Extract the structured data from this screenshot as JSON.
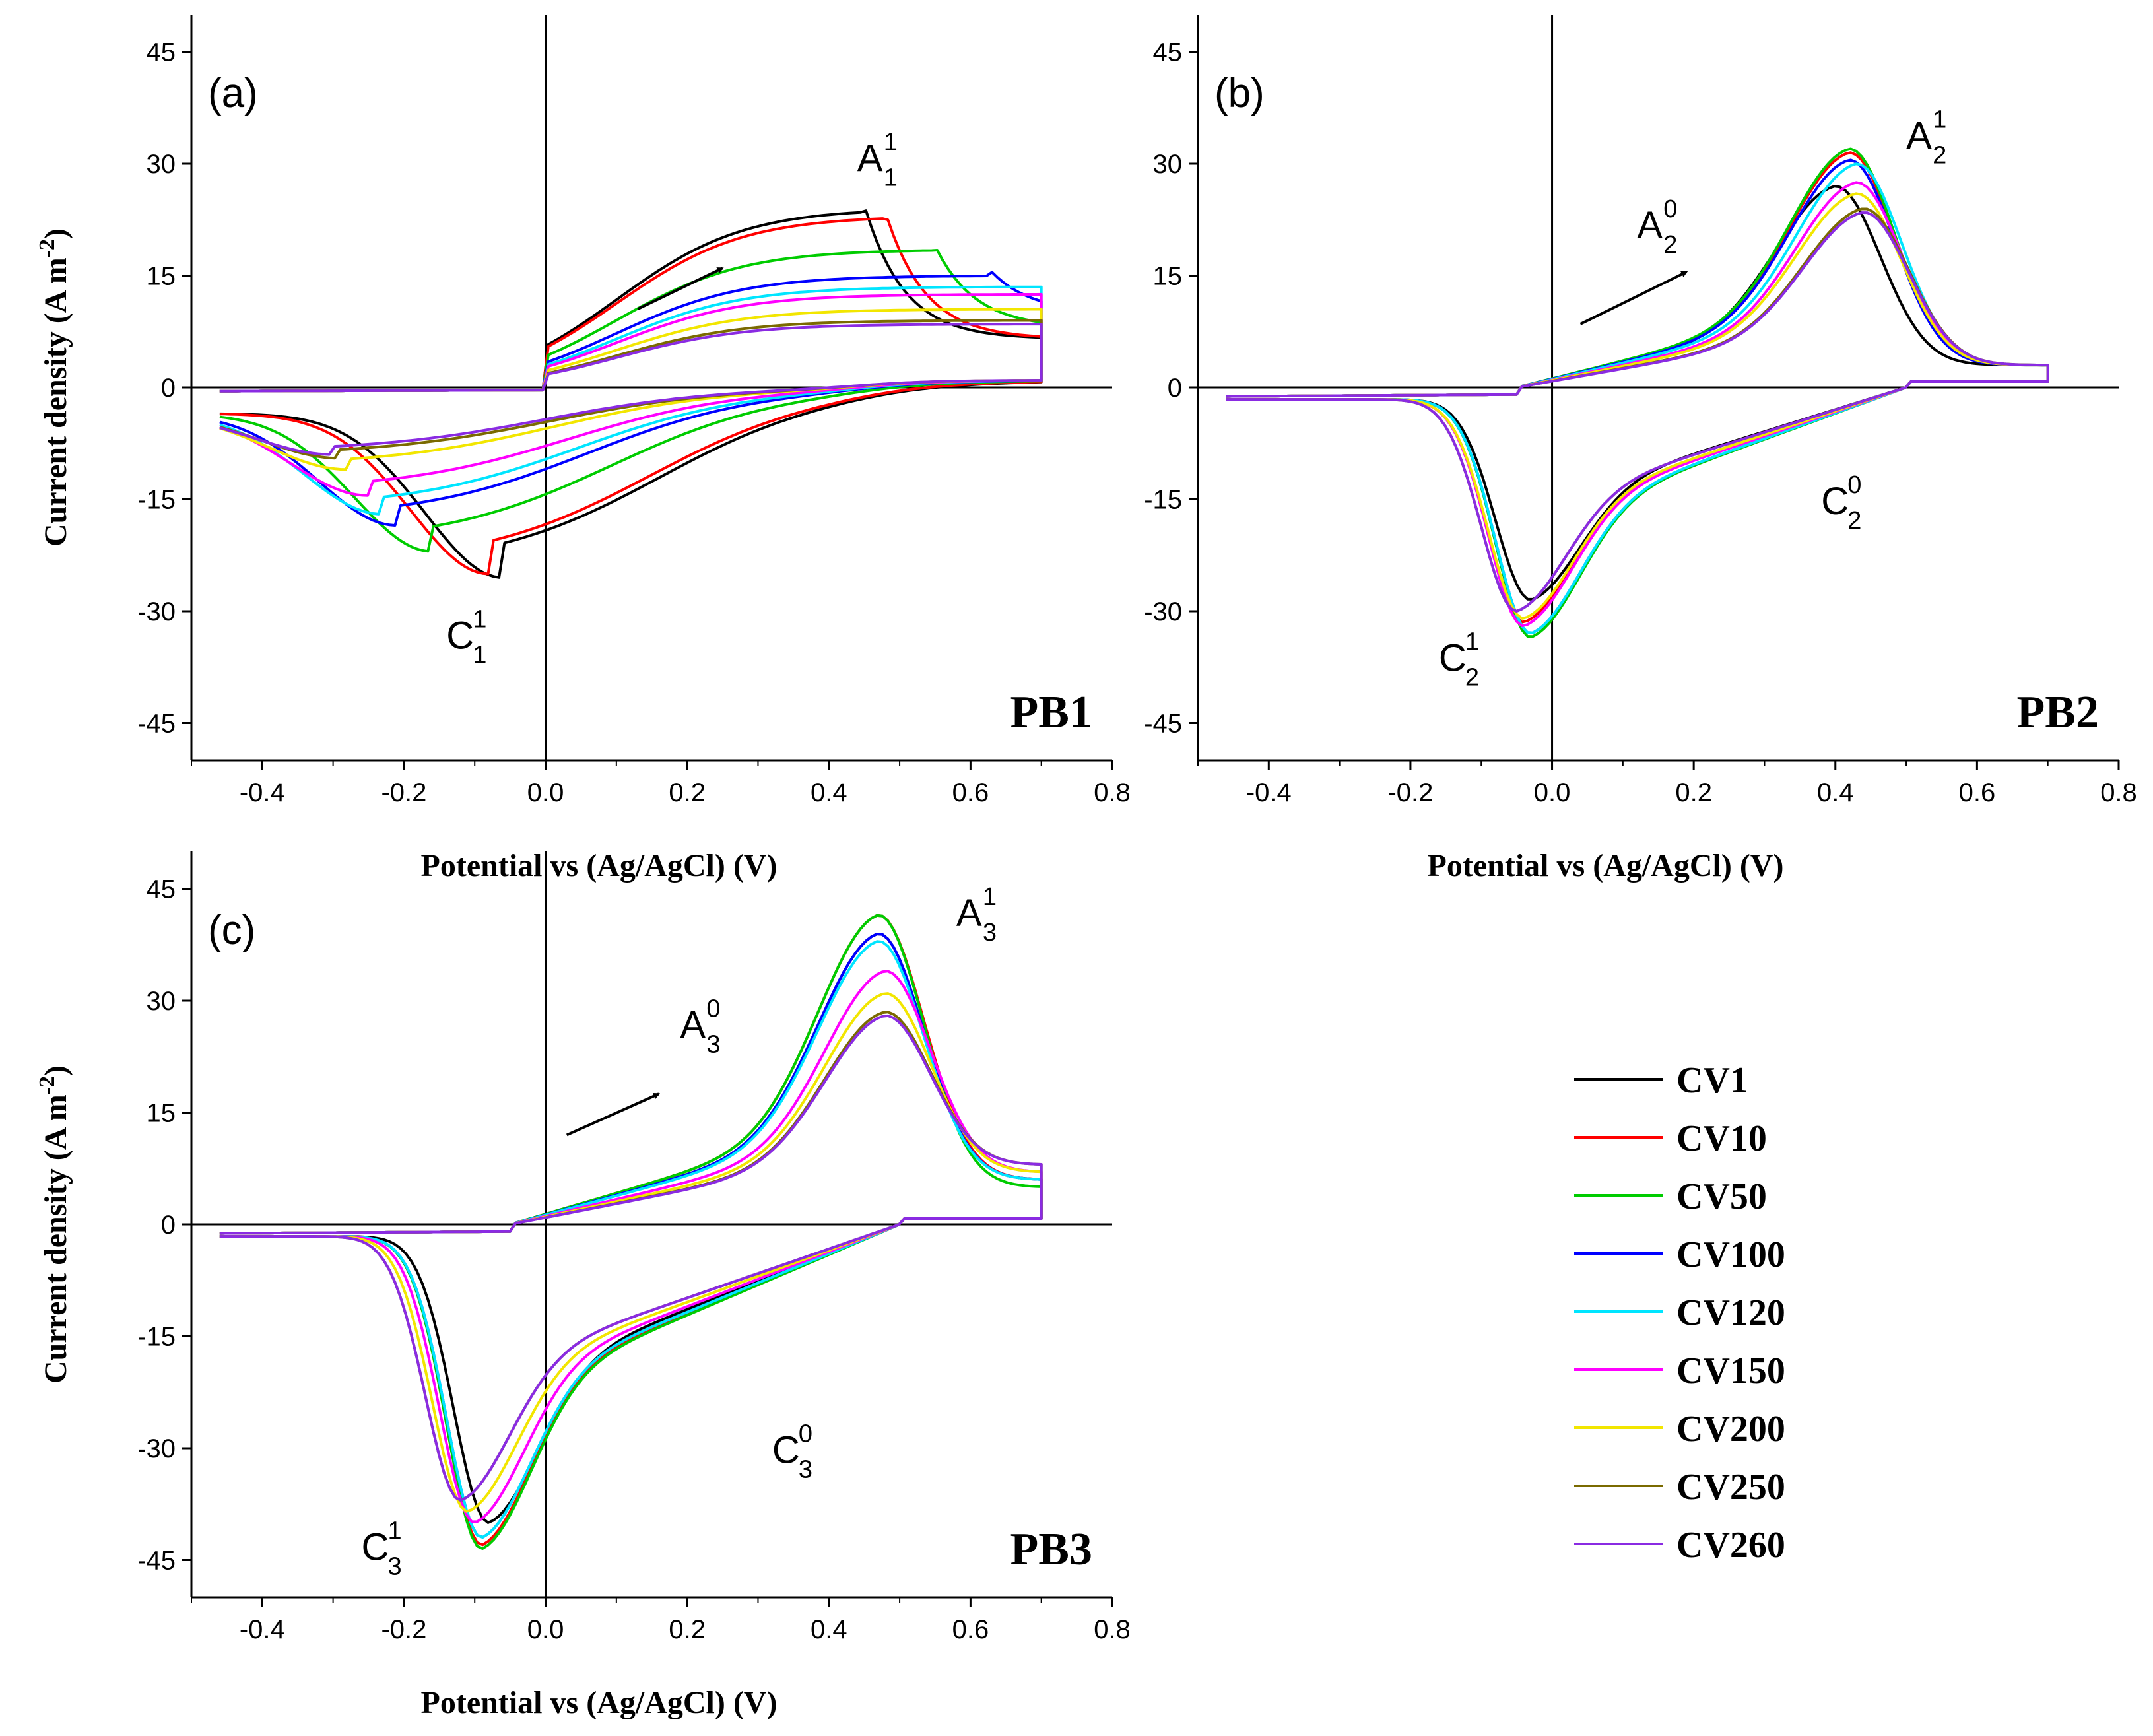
{
  "chart_data": {
    "type": "line",
    "x_label": "Potential vs (Ag/AgCl) (V)",
    "y_label": "Current density (A m",
    "y_label_sup": "-2",
    "y_label_close": ")",
    "xlim": [
      -0.5,
      0.8
    ],
    "ylim": [
      -50,
      50
    ],
    "x_ticks": [
      -0.4,
      -0.2,
      0.0,
      0.2,
      0.4,
      0.6,
      0.8
    ],
    "x_tick_labels": [
      "-0.4",
      "-0.2",
      "0.0",
      "0.2",
      "0.4",
      "0.6",
      "0.8"
    ],
    "y_ticks": [
      -45,
      -30,
      -15,
      0,
      15,
      30,
      45
    ],
    "y_tick_labels": [
      "-45",
      "-30",
      "-15",
      "0",
      "15",
      "30",
      "45"
    ],
    "legend": {
      "placement": "right-bottom",
      "entries": [
        {
          "name": "CV1",
          "color": "#000000"
        },
        {
          "name": "CV10",
          "color": "#ff0000"
        },
        {
          "name": "CV50",
          "color": "#00cc00"
        },
        {
          "name": "CV100",
          "color": "#0000ff"
        },
        {
          "name": "CV120",
          "color": "#00e5ff"
        },
        {
          "name": "CV150",
          "color": "#ff00ff"
        },
        {
          "name": "CV200",
          "color": "#f2e600"
        },
        {
          "name": "CV250",
          "color": "#7a6a00"
        },
        {
          "name": "CV260",
          "color": "#8a2be2"
        }
      ]
    },
    "panels": [
      {
        "id": "a",
        "letter": "(a)",
        "name": "PB1",
        "arrow": {
          "from": [
            0.13,
            10.5
          ],
          "to": [
            0.25,
            16.0
          ]
        },
        "peaks": [
          {
            "main": "A",
            "sub": "1",
            "sup": "1",
            "x": 0.44,
            "y": 29
          },
          {
            "main": "C",
            "sub": "1",
            "sup": "1",
            "x": -0.14,
            "y": -35
          }
        ],
        "series": [
          {
            "name": "CV1",
            "ox_pk": [
              0.45,
              24.5
            ],
            "red_pk": [
              -0.06,
              -25.5
            ],
            "end": 6.5
          },
          {
            "name": "CV10",
            "ox_pk": [
              0.48,
              23.5
            ],
            "red_pk": [
              -0.08,
              -25.0
            ],
            "end": 6.5
          },
          {
            "name": "CV50",
            "ox_pk": [
              0.55,
              19.0
            ],
            "red_pk": [
              -0.16,
              -22.0
            ],
            "end": 8.0
          },
          {
            "name": "CV100",
            "ox_pk": [
              0.63,
              15.5
            ],
            "red_pk": [
              -0.21,
              -18.5
            ],
            "end": 10.0
          },
          {
            "name": "CV120",
            "ox_pk": [
              0.7,
              14.0
            ],
            "red_pk": [
              -0.23,
              -17.0
            ],
            "end": 12.0
          },
          {
            "name": "CV150",
            "ox_pk": [
              0.7,
              13.0
            ],
            "red_pk": [
              -0.25,
              -14.5
            ],
            "end": 13.0
          },
          {
            "name": "CV200",
            "ox_pk": [
              0.7,
              11.0
            ],
            "red_pk": [
              -0.28,
              -11.0
            ],
            "end": 11.0
          },
          {
            "name": "CV250",
            "ox_pk": [
              0.7,
              9.5
            ],
            "red_pk": [
              -0.29,
              -9.5
            ],
            "end": 9.5
          },
          {
            "name": "CV260",
            "ox_pk": [
              0.7,
              9.0
            ],
            "red_pk": [
              -0.3,
              -9.0
            ],
            "end": 9.0
          }
        ]
      },
      {
        "id": "b",
        "letter": "(b)",
        "name": "PB2",
        "arrow": {
          "from": [
            0.04,
            8.5
          ],
          "to": [
            0.19,
            15.5
          ]
        },
        "peaks": [
          {
            "main": "A",
            "sub": "2",
            "sup": "0",
            "x": 0.12,
            "y": 20
          },
          {
            "main": "A",
            "sub": "2",
            "sup": "1",
            "x": 0.5,
            "y": 32
          },
          {
            "main": "C",
            "sub": "2",
            "sup": "0",
            "x": 0.38,
            "y": -17
          },
          {
            "main": "C",
            "sub": "2",
            "sup": "1",
            "x": -0.16,
            "y": -38
          }
        ],
        "series": [
          {
            "name": "CV1",
            "ox_pk": [
              0.4,
              27.0
            ],
            "red_pk": [
              -0.03,
              -28.5
            ],
            "end": 3.0
          },
          {
            "name": "CV10",
            "ox_pk": [
              0.42,
              31.5
            ],
            "red_pk": [
              -0.04,
              -31.5
            ],
            "end": 3.0
          },
          {
            "name": "CV50",
            "ox_pk": [
              0.42,
              32.0
            ],
            "red_pk": [
              -0.03,
              -33.5
            ],
            "end": 3.0
          },
          {
            "name": "CV100",
            "ox_pk": [
              0.42,
              30.5
            ],
            "red_pk": [
              -0.03,
              -33.0
            ],
            "end": 3.0
          },
          {
            "name": "CV120",
            "ox_pk": [
              0.43,
              30.0
            ],
            "red_pk": [
              -0.03,
              -33.0
            ],
            "end": 3.0
          },
          {
            "name": "CV150",
            "ox_pk": [
              0.43,
              27.5
            ],
            "red_pk": [
              -0.04,
              -32.0
            ],
            "end": 3.0
          },
          {
            "name": "CV200",
            "ox_pk": [
              0.43,
              26.0
            ],
            "red_pk": [
              -0.04,
              -31.0
            ],
            "end": 3.0
          },
          {
            "name": "CV250",
            "ox_pk": [
              0.44,
              24.0
            ],
            "red_pk": [
              -0.05,
              -30.0
            ],
            "end": 3.0
          },
          {
            "name": "CV260",
            "ox_pk": [
              0.44,
              23.5
            ],
            "red_pk": [
              -0.05,
              -30.0
            ],
            "end": 3.0
          }
        ]
      },
      {
        "id": "c",
        "letter": "(c)",
        "name": "PB3",
        "arrow": {
          "from": [
            0.03,
            12.0
          ],
          "to": [
            0.16,
            17.5
          ]
        },
        "peaks": [
          {
            "main": "A",
            "sub": "3",
            "sup": "0",
            "x": 0.19,
            "y": 25
          },
          {
            "main": "A",
            "sub": "3",
            "sup": "1",
            "x": 0.58,
            "y": 40
          },
          {
            "main": "C",
            "sub": "3",
            "sup": "0",
            "x": 0.32,
            "y": -32
          },
          {
            "main": "C",
            "sub": "3",
            "sup": "1",
            "x": -0.26,
            "y": -45
          }
        ],
        "series": [
          {
            "name": "CV1",
            "ox_pk": [
              0.47,
              39.0
            ],
            "red_pk": [
              -0.08,
              -40.0
            ],
            "end": 6.0
          },
          {
            "name": "CV10",
            "ox_pk": [
              0.47,
              41.5
            ],
            "red_pk": [
              -0.09,
              -43.0
            ],
            "end": 6.0
          },
          {
            "name": "CV50",
            "ox_pk": [
              0.47,
              41.5
            ],
            "red_pk": [
              -0.09,
              -43.5
            ],
            "end": 5.0
          },
          {
            "name": "CV100",
            "ox_pk": [
              0.47,
              39.0
            ],
            "red_pk": [
              -0.09,
              -42.0
            ],
            "end": 6.0
          },
          {
            "name": "CV120",
            "ox_pk": [
              0.47,
              38.0
            ],
            "red_pk": [
              -0.09,
              -42.0
            ],
            "end": 6.0
          },
          {
            "name": "CV150",
            "ox_pk": [
              0.48,
              34.0
            ],
            "red_pk": [
              -0.1,
              -40.0
            ],
            "end": 7.0
          },
          {
            "name": "CV200",
            "ox_pk": [
              0.48,
              31.0
            ],
            "red_pk": [
              -0.11,
              -38.5
            ],
            "end": 7.0
          },
          {
            "name": "CV250",
            "ox_pk": [
              0.48,
              28.5
            ],
            "red_pk": [
              -0.12,
              -37.0
            ],
            "end": 8.0
          },
          {
            "name": "CV260",
            "ox_pk": [
              0.48,
              28.0
            ],
            "red_pk": [
              -0.12,
              -37.0
            ],
            "end": 8.0
          }
        ]
      }
    ]
  }
}
